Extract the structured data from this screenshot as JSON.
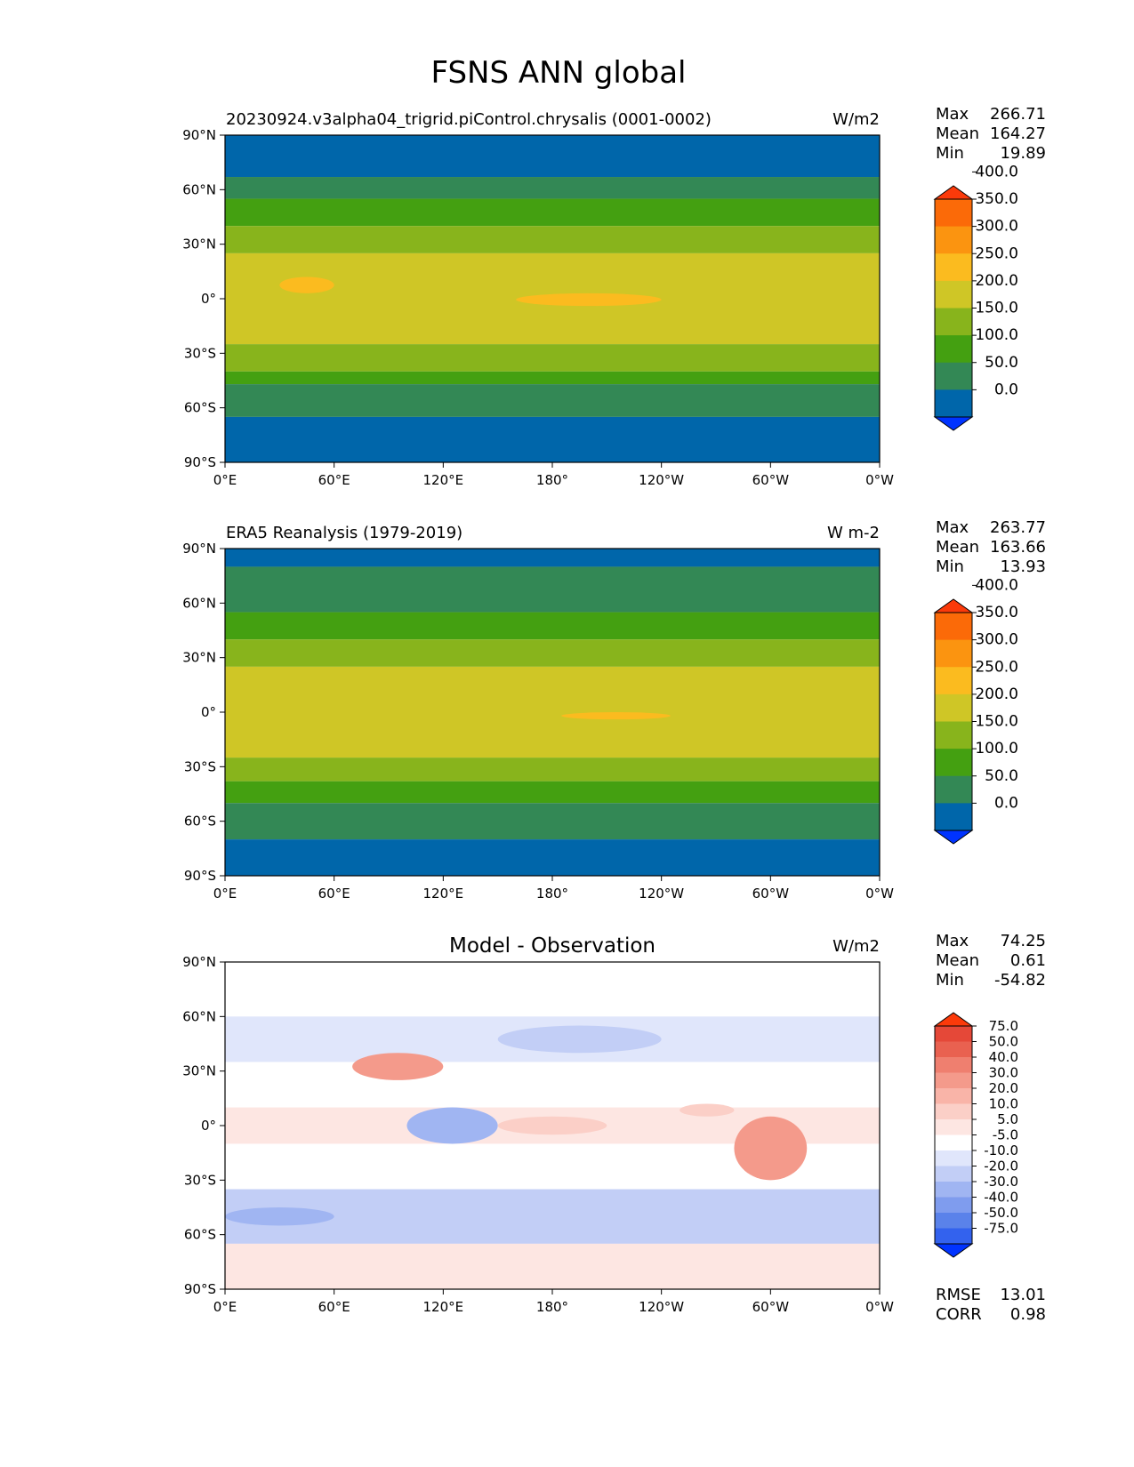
{
  "figure_title": "FSNS ANN global",
  "x_tick_labels": [
    "0°E",
    "60°E",
    "120°E",
    "180°",
    "120°W",
    "60°W",
    "0°W"
  ],
  "y_tick_labels": [
    "90°N",
    "60°N",
    "30°N",
    "0°",
    "30°S",
    "60°S",
    "90°S"
  ],
  "colormaps": {
    "absolute": [
      "#0033ff",
      "#0066aa",
      "#338855",
      "#44a011",
      "#88b41c",
      "#cfc626",
      "#fbbb1f",
      "#fb9410",
      "#fb6a08",
      "#fb3a0a"
    ],
    "difference": [
      "#0033ff",
      "#3362ee",
      "#5a82ea",
      "#7f9cee",
      "#a0b5f2",
      "#c2cef6",
      "#e0e6fb",
      "#ffffff",
      "#fde6e2",
      "#fbcfc7",
      "#f9b4a8",
      "#f49a8b",
      "#ef7f6f",
      "#e96150",
      "#e54838",
      "#fb3a0a"
    ]
  },
  "chart_data": [
    {
      "type": "heatmap",
      "title": "20230924.v3alpha04_trigrid.piControl.chrysalis (0001-0002)",
      "units": "W/m2",
      "xlim": [
        0,
        360
      ],
      "ylim": [
        -90,
        90
      ],
      "stats": [
        {
          "label": "Max",
          "value": "266.71"
        },
        {
          "label": "Mean",
          "value": "164.27"
        },
        {
          "label": "Min",
          "value": "19.89"
        }
      ],
      "colorbar": {
        "levels": [
          "0.0",
          "50.0",
          "100.0",
          "150.0",
          "200.0",
          "250.0",
          "300.0",
          "350.0",
          "400.0"
        ],
        "extend": "both"
      },
      "zonal_bands": [
        {
          "lat_from": 90,
          "lat_to": 67,
          "value": 30
        },
        {
          "lat_from": 67,
          "lat_to": 55,
          "value": 80
        },
        {
          "lat_from": 55,
          "lat_to": 40,
          "value": 130
        },
        {
          "lat_from": 40,
          "lat_to": 25,
          "value": 180
        },
        {
          "lat_from": 25,
          "lat_to": -25,
          "value": 230
        },
        {
          "lat_from": -25,
          "lat_to": -40,
          "value": 180
        },
        {
          "lat_from": -40,
          "lat_to": -47,
          "value": 130
        },
        {
          "lat_from": -47,
          "lat_to": -65,
          "value": 80
        },
        {
          "lat_from": -65,
          "lat_to": -90,
          "value": 30
        }
      ],
      "patches": [
        {
          "lon": [
            160,
            240
          ],
          "lat": [
            -4,
            3
          ],
          "value": 255
        },
        {
          "lon": [
            30,
            60
          ],
          "lat": [
            3,
            12
          ],
          "value": 255
        }
      ]
    },
    {
      "type": "heatmap",
      "title": "ERA5 Reanalysis (1979-2019)",
      "units": "W m-2",
      "xlim": [
        0,
        360
      ],
      "ylim": [
        -90,
        90
      ],
      "stats": [
        {
          "label": "Max",
          "value": "263.77"
        },
        {
          "label": "Mean",
          "value": "163.66"
        },
        {
          "label": "Min",
          "value": "13.93"
        }
      ],
      "colorbar": {
        "levels": [
          "0.0",
          "50.0",
          "100.0",
          "150.0",
          "200.0",
          "250.0",
          "300.0",
          "350.0",
          "400.0"
        ],
        "extend": "both"
      },
      "zonal_bands": [
        {
          "lat_from": 90,
          "lat_to": 80,
          "value": 30
        },
        {
          "lat_from": 80,
          "lat_to": 55,
          "value": 80
        },
        {
          "lat_from": 55,
          "lat_to": 40,
          "value": 130
        },
        {
          "lat_from": 40,
          "lat_to": 25,
          "value": 180
        },
        {
          "lat_from": 25,
          "lat_to": -25,
          "value": 230
        },
        {
          "lat_from": -25,
          "lat_to": -38,
          "value": 180
        },
        {
          "lat_from": -38,
          "lat_to": -50,
          "value": 130
        },
        {
          "lat_from": -50,
          "lat_to": -70,
          "value": 80
        },
        {
          "lat_from": -70,
          "lat_to": -90,
          "value": 30
        }
      ],
      "patches": [
        {
          "lon": [
            185,
            245
          ],
          "lat": [
            -4,
            0
          ],
          "value": 255
        }
      ]
    },
    {
      "type": "heatmap",
      "title": "Model - Observation",
      "units": "W/m2",
      "xlim": [
        0,
        360
      ],
      "ylim": [
        -90,
        90
      ],
      "stats": [
        {
          "label": "Max",
          "value": "74.25"
        },
        {
          "label": "Mean",
          "value": "0.61"
        },
        {
          "label": "Min",
          "value": "-54.82"
        }
      ],
      "colorbar": {
        "levels": [
          "-75.0",
          "-50.0",
          "-40.0",
          "-30.0",
          "-20.0",
          "-10.0",
          "-5.0",
          "5.0",
          "10.0",
          "20.0",
          "30.0",
          "40.0",
          "50.0",
          "75.0"
        ],
        "extend": "both"
      },
      "zonal_bands": [
        {
          "lat_from": 90,
          "lat_to": 60,
          "value": 0
        },
        {
          "lat_from": 60,
          "lat_to": 35,
          "value": -8
        },
        {
          "lat_from": 35,
          "lat_to": 10,
          "value": 4
        },
        {
          "lat_from": 10,
          "lat_to": -10,
          "value": 8
        },
        {
          "lat_from": -10,
          "lat_to": -35,
          "value": 2
        },
        {
          "lat_from": -35,
          "lat_to": -65,
          "value": -15
        },
        {
          "lat_from": -65,
          "lat_to": -90,
          "value": 6
        }
      ],
      "patches": [
        {
          "lon": [
            70,
            120
          ],
          "lat": [
            25,
            40
          ],
          "value": 35
        },
        {
          "lon": [
            280,
            320
          ],
          "lat": [
            -30,
            5
          ],
          "value": 30
        },
        {
          "lon": [
            100,
            150
          ],
          "lat": [
            -10,
            10
          ],
          "value": -25
        },
        {
          "lon": [
            150,
            210
          ],
          "lat": [
            -5,
            5
          ],
          "value": 15
        },
        {
          "lon": [
            0,
            60
          ],
          "lat": [
            -45,
            -55
          ],
          "value": -22
        },
        {
          "lon": [
            250,
            280
          ],
          "lat": [
            5,
            12
          ],
          "value": 15
        },
        {
          "lon": [
            150,
            240
          ],
          "lat": [
            40,
            55
          ],
          "value": -12
        }
      ],
      "extra_stats": [
        {
          "label": "RMSE",
          "value": "13.01"
        },
        {
          "label": "CORR",
          "value": "0.98"
        }
      ]
    }
  ]
}
